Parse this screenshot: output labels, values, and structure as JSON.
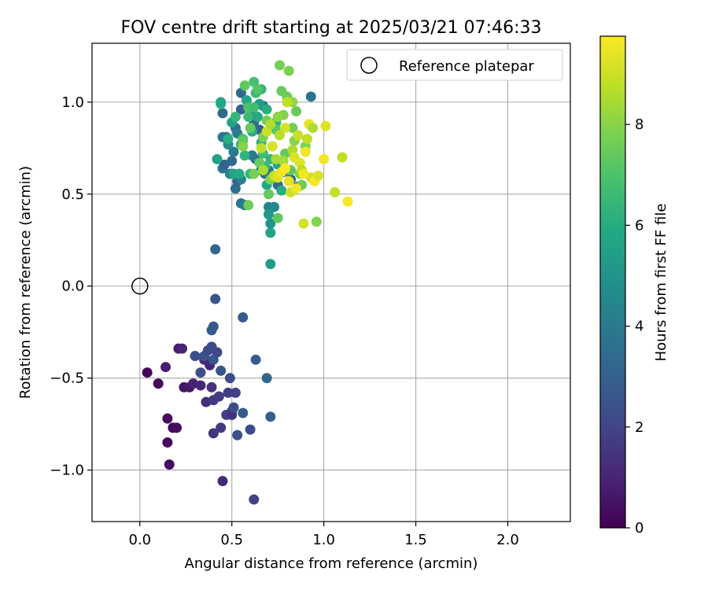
{
  "chart_data": {
    "type": "scatter",
    "title": "FOV centre drift starting at 2025/03/21 07:46:33",
    "xlabel": "Angular distance from reference (arcmin)",
    "ylabel": "Rotation from reference (arcmin)",
    "xlim": [
      -0.26,
      2.34
    ],
    "ylim": [
      -1.28,
      1.32
    ],
    "xticks": [
      0.0,
      0.5,
      1.0,
      1.5,
      2.0
    ],
    "xtick_labels": [
      "0.0",
      "0.5",
      "1.0",
      "1.5",
      "2.0"
    ],
    "yticks": [
      -1.0,
      -0.5,
      0.0,
      0.5,
      1.0
    ],
    "ytick_labels": [
      "−1.0",
      "−0.5",
      "0.0",
      "0.5",
      "1.0"
    ],
    "grid": true,
    "legend": {
      "placement": "top-right",
      "entries": [
        "Reference platepar"
      ]
    },
    "reference_point": {
      "x": 0.0,
      "y": 0.0
    },
    "colorbar": {
      "label": "Hours from first FF file",
      "range": [
        0,
        9.75
      ],
      "ticks": [
        0,
        2,
        4,
        6,
        8
      ],
      "tick_labels": [
        "0",
        "2",
        "4",
        "6",
        "8"
      ],
      "colormap": "viridis"
    },
    "points": [
      {
        "x": 0.04,
        "y": -0.47,
        "c": 0.1
      },
      {
        "x": 0.1,
        "y": -0.53,
        "c": 0.2
      },
      {
        "x": 0.15,
        "y": -0.72,
        "c": 0.3
      },
      {
        "x": 0.15,
        "y": -0.85,
        "c": 0.2
      },
      {
        "x": 0.16,
        "y": -0.97,
        "c": 0.4
      },
      {
        "x": 0.18,
        "y": -0.77,
        "c": 0.3
      },
      {
        "x": 0.2,
        "y": -0.77,
        "c": 0.4
      },
      {
        "x": 0.14,
        "y": -0.44,
        "c": 0.8
      },
      {
        "x": 0.21,
        "y": -0.34,
        "c": 0.7
      },
      {
        "x": 0.23,
        "y": -0.34,
        "c": 1.0
      },
      {
        "x": 0.24,
        "y": -0.55,
        "c": 0.5
      },
      {
        "x": 0.27,
        "y": -0.55,
        "c": 0.6
      },
      {
        "x": 0.29,
        "y": -0.53,
        "c": 0.9
      },
      {
        "x": 0.33,
        "y": -0.54,
        "c": 1.0
      },
      {
        "x": 0.35,
        "y": -0.4,
        "c": 1.2
      },
      {
        "x": 0.36,
        "y": -0.63,
        "c": 1.3
      },
      {
        "x": 0.38,
        "y": -0.43,
        "c": 1.1
      },
      {
        "x": 0.39,
        "y": -0.55,
        "c": 1.4
      },
      {
        "x": 0.4,
        "y": -0.62,
        "c": 1.6
      },
      {
        "x": 0.4,
        "y": -0.8,
        "c": 1.5
      },
      {
        "x": 0.43,
        "y": -0.6,
        "c": 1.7
      },
      {
        "x": 0.44,
        "y": -0.77,
        "c": 1.6
      },
      {
        "x": 0.45,
        "y": -1.06,
        "c": 1.2
      },
      {
        "x": 0.47,
        "y": -0.7,
        "c": 1.8
      },
      {
        "x": 0.48,
        "y": -0.58,
        "c": 1.7
      },
      {
        "x": 0.49,
        "y": -0.5,
        "c": 2.2
      },
      {
        "x": 0.5,
        "y": -0.68,
        "c": 2.0
      },
      {
        "x": 0.52,
        "y": -0.58,
        "c": 1.9
      },
      {
        "x": 0.5,
        "y": -0.7,
        "c": 1.4
      },
      {
        "x": 0.51,
        "y": -0.66,
        "c": 2.3
      },
      {
        "x": 0.53,
        "y": -0.81,
        "c": 2.5
      },
      {
        "x": 0.56,
        "y": -0.69,
        "c": 2.8
      },
      {
        "x": 0.6,
        "y": -0.78,
        "c": 2.2
      },
      {
        "x": 0.62,
        "y": -1.16,
        "c": 1.9
      },
      {
        "x": 0.3,
        "y": -0.38,
        "c": 2.4
      },
      {
        "x": 0.33,
        "y": -0.47,
        "c": 2.3
      },
      {
        "x": 0.35,
        "y": -0.38,
        "c": 2.5
      },
      {
        "x": 0.37,
        "y": -0.35,
        "c": 2.1
      },
      {
        "x": 0.39,
        "y": -0.33,
        "c": 2.2
      },
      {
        "x": 0.4,
        "y": -0.4,
        "c": 2.6
      },
      {
        "x": 0.42,
        "y": -0.36,
        "c": 2.1
      },
      {
        "x": 0.44,
        "y": -0.46,
        "c": 2.6
      },
      {
        "x": 0.41,
        "y": -0.07,
        "c": 2.6
      },
      {
        "x": 0.41,
        "y": 0.2,
        "c": 3.2
      },
      {
        "x": 0.39,
        "y": -0.24,
        "c": 2.7
      },
      {
        "x": 0.4,
        "y": -0.22,
        "c": 2.7
      },
      {
        "x": 0.56,
        "y": -0.17,
        "c": 2.8
      },
      {
        "x": 0.63,
        "y": -0.4,
        "c": 2.9
      },
      {
        "x": 0.69,
        "y": -0.5,
        "c": 3.2
      },
      {
        "x": 0.71,
        "y": -0.71,
        "c": 3.0
      },
      {
        "x": 0.55,
        "y": 0.45,
        "c": 3.8
      },
      {
        "x": 0.57,
        "y": 0.44,
        "c": 4.0
      },
      {
        "x": 0.7,
        "y": 0.43,
        "c": 4.3
      },
      {
        "x": 0.73,
        "y": 0.43,
        "c": 4.6
      },
      {
        "x": 0.7,
        "y": 0.39,
        "c": 5.3
      },
      {
        "x": 0.71,
        "y": 0.34,
        "c": 5.0
      },
      {
        "x": 0.71,
        "y": 0.29,
        "c": 5.6
      },
      {
        "x": 0.71,
        "y": 0.12,
        "c": 5.3
      },
      {
        "x": 0.52,
        "y": 0.53,
        "c": 3.5
      },
      {
        "x": 0.53,
        "y": 0.57,
        "c": 3.2
      },
      {
        "x": 0.55,
        "y": 0.58,
        "c": 4.1
      },
      {
        "x": 0.49,
        "y": 0.61,
        "c": 4.4
      },
      {
        "x": 0.45,
        "y": 0.64,
        "c": 3.8
      },
      {
        "x": 0.46,
        "y": 0.66,
        "c": 3.0
      },
      {
        "x": 0.5,
        "y": 0.68,
        "c": 3.3
      },
      {
        "x": 0.51,
        "y": 0.73,
        "c": 4.0
      },
      {
        "x": 0.47,
        "y": 0.81,
        "c": 3.6
      },
      {
        "x": 0.45,
        "y": 0.81,
        "c": 3.9
      },
      {
        "x": 0.48,
        "y": 0.77,
        "c": 4.6
      },
      {
        "x": 0.52,
        "y": 0.86,
        "c": 3.5
      },
      {
        "x": 0.53,
        "y": 0.83,
        "c": 4.2
      },
      {
        "x": 0.45,
        "y": 0.94,
        "c": 3.4
      },
      {
        "x": 0.55,
        "y": 0.96,
        "c": 3.1
      },
      {
        "x": 0.55,
        "y": 1.05,
        "c": 3.3
      },
      {
        "x": 0.6,
        "y": 0.93,
        "c": 3.9
      },
      {
        "x": 0.62,
        "y": 0.89,
        "c": 3.5
      },
      {
        "x": 0.65,
        "y": 0.85,
        "c": 3.2
      },
      {
        "x": 0.67,
        "y": 0.98,
        "c": 3.7
      },
      {
        "x": 0.63,
        "y": 0.69,
        "c": 3.6
      },
      {
        "x": 0.66,
        "y": 0.63,
        "c": 3.2
      },
      {
        "x": 0.68,
        "y": 0.61,
        "c": 3.4
      },
      {
        "x": 0.7,
        "y": 0.63,
        "c": 3.9
      },
      {
        "x": 0.73,
        "y": 0.59,
        "c": 3.1
      },
      {
        "x": 0.75,
        "y": 0.55,
        "c": 3.5
      },
      {
        "x": 0.78,
        "y": 0.62,
        "c": 3.3
      },
      {
        "x": 0.82,
        "y": 0.58,
        "c": 3.0
      },
      {
        "x": 0.86,
        "y": 0.54,
        "c": 3.4
      },
      {
        "x": 0.93,
        "y": 1.03,
        "c": 3.7
      },
      {
        "x": 0.61,
        "y": 0.71,
        "c": 4.0
      },
      {
        "x": 0.72,
        "y": 0.87,
        "c": 3.8
      },
      {
        "x": 0.42,
        "y": 0.69,
        "c": 5.6
      },
      {
        "x": 0.44,
        "y": 0.99,
        "c": 6.2
      },
      {
        "x": 0.44,
        "y": 1.0,
        "c": 5.8
      },
      {
        "x": 0.48,
        "y": 0.8,
        "c": 6.1
      },
      {
        "x": 0.5,
        "y": 0.89,
        "c": 5.6
      },
      {
        "x": 0.51,
        "y": 0.61,
        "c": 5.7
      },
      {
        "x": 0.52,
        "y": 0.92,
        "c": 6.4
      },
      {
        "x": 0.54,
        "y": 0.61,
        "c": 5.9
      },
      {
        "x": 0.55,
        "y": 0.77,
        "c": 6.1
      },
      {
        "x": 0.56,
        "y": 0.8,
        "c": 6.9
      },
      {
        "x": 0.57,
        "y": 0.71,
        "c": 6.3
      },
      {
        "x": 0.59,
        "y": 0.92,
        "c": 6.6
      },
      {
        "x": 0.6,
        "y": 0.61,
        "c": 6.4
      },
      {
        "x": 0.61,
        "y": 0.84,
        "c": 6.0
      },
      {
        "x": 0.63,
        "y": 1.05,
        "c": 6.6
      },
      {
        "x": 0.64,
        "y": 0.92,
        "c": 5.9
      },
      {
        "x": 0.66,
        "y": 0.78,
        "c": 6.2
      },
      {
        "x": 0.67,
        "y": 0.72,
        "c": 6.8
      },
      {
        "x": 0.68,
        "y": 0.65,
        "c": 6.5
      },
      {
        "x": 0.69,
        "y": 0.55,
        "c": 5.9
      },
      {
        "x": 0.71,
        "y": 0.69,
        "c": 6.4
      },
      {
        "x": 0.72,
        "y": 0.76,
        "c": 6.7
      },
      {
        "x": 0.74,
        "y": 0.89,
        "c": 6.1
      },
      {
        "x": 0.75,
        "y": 0.66,
        "c": 5.8
      },
      {
        "x": 0.77,
        "y": 0.52,
        "c": 6.0
      },
      {
        "x": 0.58,
        "y": 1.01,
        "c": 5.8
      },
      {
        "x": 0.62,
        "y": 1.11,
        "c": 6.9
      },
      {
        "x": 0.66,
        "y": 1.07,
        "c": 6.4
      },
      {
        "x": 0.65,
        "y": 0.99,
        "c": 5.4
      },
      {
        "x": 0.69,
        "y": 0.96,
        "c": 6.1
      },
      {
        "x": 0.59,
        "y": 0.97,
        "c": 7.0
      },
      {
        "x": 0.62,
        "y": 0.97,
        "c": 6.8
      },
      {
        "x": 0.57,
        "y": 1.09,
        "c": 7.3
      },
      {
        "x": 0.59,
        "y": 0.44,
        "c": 7.6
      },
      {
        "x": 0.56,
        "y": 0.79,
        "c": 7.3
      },
      {
        "x": 0.56,
        "y": 0.76,
        "c": 7.9
      },
      {
        "x": 0.6,
        "y": 0.86,
        "c": 7.4
      },
      {
        "x": 0.62,
        "y": 0.61,
        "c": 7.7
      },
      {
        "x": 0.64,
        "y": 1.07,
        "c": 7.1
      },
      {
        "x": 0.65,
        "y": 0.67,
        "c": 7.5
      },
      {
        "x": 0.67,
        "y": 0.81,
        "c": 7.8
      },
      {
        "x": 0.69,
        "y": 0.9,
        "c": 7.6
      },
      {
        "x": 0.7,
        "y": 0.5,
        "c": 7.4
      },
      {
        "x": 0.71,
        "y": 0.58,
        "c": 7.9
      },
      {
        "x": 0.74,
        "y": 0.85,
        "c": 7.2
      },
      {
        "x": 0.75,
        "y": 0.37,
        "c": 7.3
      },
      {
        "x": 0.76,
        "y": 1.2,
        "c": 7.7
      },
      {
        "x": 0.77,
        "y": 1.06,
        "c": 7.5
      },
      {
        "x": 0.78,
        "y": 0.93,
        "c": 7.9
      },
      {
        "x": 0.79,
        "y": 0.72,
        "c": 7.4
      },
      {
        "x": 0.8,
        "y": 1.03,
        "c": 7.6
      },
      {
        "x": 0.81,
        "y": 1.17,
        "c": 7.8
      },
      {
        "x": 0.82,
        "y": 0.63,
        "c": 7.3
      },
      {
        "x": 0.83,
        "y": 0.86,
        "c": 7.7
      },
      {
        "x": 0.84,
        "y": 0.79,
        "c": 8.0
      },
      {
        "x": 0.85,
        "y": 0.95,
        "c": 7.5
      },
      {
        "x": 0.87,
        "y": 0.61,
        "c": 7.9
      },
      {
        "x": 0.88,
        "y": 0.55,
        "c": 7.6
      },
      {
        "x": 0.9,
        "y": 0.76,
        "c": 7.8
      },
      {
        "x": 0.96,
        "y": 0.35,
        "c": 7.9
      },
      {
        "x": 0.83,
        "y": 1.0,
        "c": 8.1
      },
      {
        "x": 0.75,
        "y": 0.92,
        "c": 8.1
      },
      {
        "x": 0.66,
        "y": 0.75,
        "c": 8.8
      },
      {
        "x": 0.67,
        "y": 0.63,
        "c": 8.5
      },
      {
        "x": 0.69,
        "y": 0.84,
        "c": 9.0
      },
      {
        "x": 0.71,
        "y": 0.88,
        "c": 8.6
      },
      {
        "x": 0.72,
        "y": 0.76,
        "c": 9.2
      },
      {
        "x": 0.73,
        "y": 0.6,
        "c": 8.9
      },
      {
        "x": 0.74,
        "y": 0.69,
        "c": 8.4
      },
      {
        "x": 0.75,
        "y": 0.59,
        "c": 9.3
      },
      {
        "x": 0.76,
        "y": 0.82,
        "c": 8.7
      },
      {
        "x": 0.77,
        "y": 0.62,
        "c": 9.5
      },
      {
        "x": 0.78,
        "y": 0.68,
        "c": 8.5
      },
      {
        "x": 0.79,
        "y": 0.86,
        "c": 9.1
      },
      {
        "x": 0.8,
        "y": 1.0,
        "c": 8.8
      },
      {
        "x": 0.81,
        "y": 0.57,
        "c": 9.4
      },
      {
        "x": 0.82,
        "y": 0.51,
        "c": 9.0
      },
      {
        "x": 0.83,
        "y": 0.74,
        "c": 8.6
      },
      {
        "x": 0.84,
        "y": 0.7,
        "c": 9.2
      },
      {
        "x": 0.85,
        "y": 0.53,
        "c": 9.6
      },
      {
        "x": 0.86,
        "y": 0.82,
        "c": 8.9
      },
      {
        "x": 0.87,
        "y": 0.67,
        "c": 9.3
      },
      {
        "x": 0.88,
        "y": 0.63,
        "c": 8.7
      },
      {
        "x": 0.89,
        "y": 0.34,
        "c": 9.1
      },
      {
        "x": 0.9,
        "y": 0.73,
        "c": 9.5
      },
      {
        "x": 0.91,
        "y": 0.8,
        "c": 8.8
      },
      {
        "x": 0.92,
        "y": 0.88,
        "c": 9.4
      },
      {
        "x": 0.93,
        "y": 0.59,
        "c": 9.0
      },
      {
        "x": 0.94,
        "y": 0.86,
        "c": 8.6
      },
      {
        "x": 0.95,
        "y": 0.57,
        "c": 9.7
      },
      {
        "x": 0.97,
        "y": 0.6,
        "c": 9.2
      },
      {
        "x": 1.0,
        "y": 0.69,
        "c": 9.6
      },
      {
        "x": 1.01,
        "y": 0.87,
        "c": 9.3
      },
      {
        "x": 1.06,
        "y": 0.51,
        "c": 8.9
      },
      {
        "x": 1.1,
        "y": 0.7,
        "c": 8.8
      },
      {
        "x": 1.13,
        "y": 0.46,
        "c": 9.7
      },
      {
        "x": 0.89,
        "y": 0.61,
        "c": 9.6
      },
      {
        "x": 0.79,
        "y": 0.64,
        "c": 9.8
      }
    ]
  }
}
